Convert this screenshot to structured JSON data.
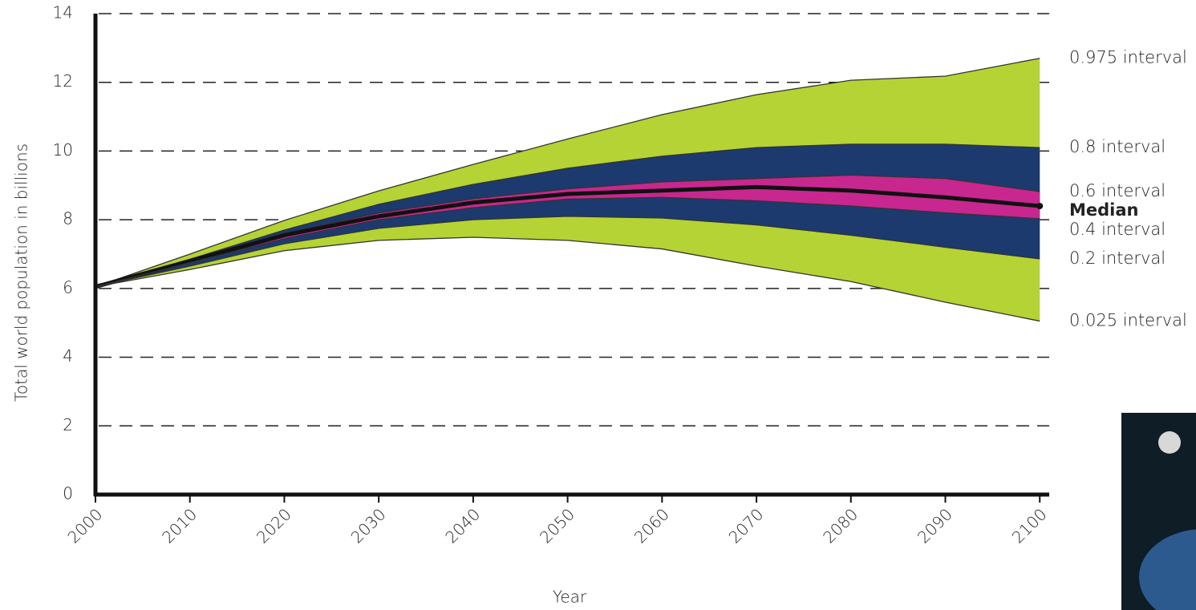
{
  "chart_data": {
    "type": "band",
    "xlabel": "Year",
    "ylabel": "Total world population in billions",
    "x": [
      2000,
      2010,
      2020,
      2030,
      2040,
      2050,
      2060,
      2070,
      2080,
      2090,
      2100
    ],
    "xlim": [
      2000,
      2101
    ],
    "xticks": [
      2000,
      2010,
      2020,
      2030,
      2040,
      2050,
      2060,
      2070,
      2080,
      2090,
      2100
    ],
    "ylim": [
      0,
      14
    ],
    "yticks": [
      0,
      2,
      4,
      6,
      8,
      10,
      12,
      14
    ],
    "grid": true,
    "series": [
      {
        "name": "0.975 interval",
        "color": "#b5d334",
        "values": [
          6.05,
          7.0,
          7.98,
          8.84,
          9.61,
          10.35,
          11.06,
          11.64,
          12.06,
          12.18,
          12.7
        ]
      },
      {
        "name": "0.8 interval",
        "color": "#1c3a6e",
        "values": [
          6.05,
          6.85,
          7.7,
          8.45,
          9.03,
          9.5,
          9.85,
          10.1,
          10.2,
          10.2,
          10.1
        ]
      },
      {
        "name": "0.6 interval",
        "color": "#c8278f",
        "values": [
          6.05,
          6.8,
          7.6,
          8.2,
          8.61,
          8.9,
          9.1,
          9.2,
          9.3,
          9.2,
          8.82
        ]
      },
      {
        "name": "Median",
        "color": "#111111",
        "values": [
          6.05,
          6.8,
          7.55,
          8.1,
          8.5,
          8.75,
          8.85,
          8.95,
          8.85,
          8.65,
          8.4
        ]
      },
      {
        "name": "0.4 interval",
        "color": "#c8278f",
        "values": [
          6.05,
          6.75,
          7.45,
          8.0,
          8.35,
          8.6,
          8.65,
          8.55,
          8.4,
          8.2,
          8.03
        ]
      },
      {
        "name": "0.2 interval",
        "color": "#1c3a6e",
        "values": [
          6.05,
          6.65,
          7.3,
          7.75,
          8.0,
          8.1,
          8.05,
          7.85,
          7.55,
          7.2,
          6.86
        ]
      },
      {
        "name": "0.025 interval",
        "color": "#b5d334",
        "values": [
          6.05,
          6.55,
          7.1,
          7.4,
          7.49,
          7.4,
          7.15,
          6.65,
          6.2,
          5.6,
          5.05
        ]
      }
    ]
  }
}
